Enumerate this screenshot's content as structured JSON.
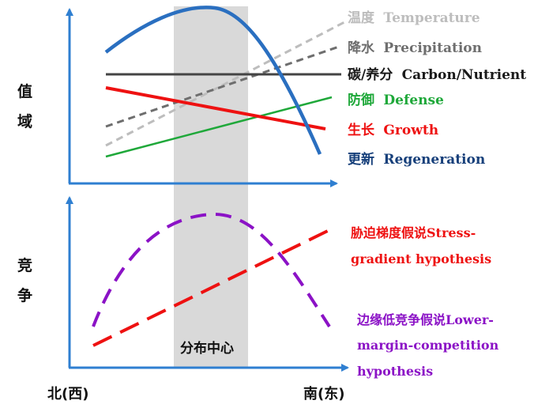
{
  "axes": {
    "top_y_label": [
      "值",
      "域"
    ],
    "bottom_y_label": [
      "竞",
      "争"
    ],
    "x_left_label": "北(西)",
    "x_right_label": "南(东)",
    "center_band_label": "分布中心"
  },
  "top_legend": [
    {
      "cn": "温度",
      "en": "Temperature",
      "color": "#bdbdbd"
    },
    {
      "cn": "降水",
      "en": "Precipitation",
      "color": "#6e6e6e"
    },
    {
      "cn": "碳/养分",
      "en": "Carbon/Nutrient",
      "color": "#1a1a1a"
    },
    {
      "cn": "防御",
      "en": "Defense",
      "color": "#1fa83a"
    },
    {
      "cn": "生长",
      "en": "Growth",
      "color": "#ee1111"
    },
    {
      "cn": "更新",
      "en": "Regeneration",
      "color": "#163f7a"
    }
  ],
  "bottom_legend": {
    "stress": [
      "胁迫梯度假说Stress-",
      "gradient hypothesis"
    ],
    "lower": [
      "边缘低竞争假说Lower-",
      "margin-competition",
      "hypothesis"
    ],
    "stress_color": "#ee1111",
    "lower_color": "#8b12c6"
  },
  "colors": {
    "axis": "#2f7fd1",
    "regeneration_curve": "#2a6fc0",
    "band": "#d9d9d9"
  }
}
